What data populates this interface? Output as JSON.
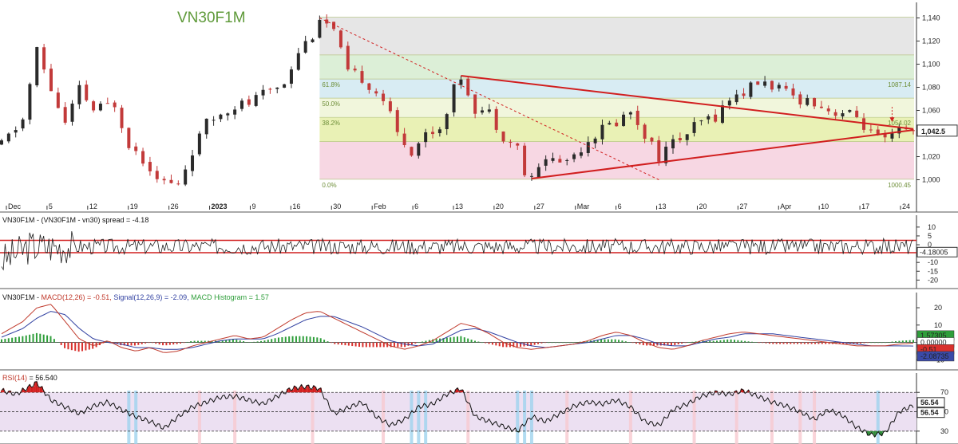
{
  "chart_data": {
    "type": "line",
    "title": "VN30F1M",
    "symbol": "VN30F1M",
    "colors": {
      "up_candle": "#2a2a2a",
      "down_candle": "#c23a3a",
      "trendline": "#d11f1f",
      "macd_line": "#c0392b",
      "signal_line": "#2f3fa0",
      "histogram_up": "#2e9e3a",
      "histogram_down": "#d9302c",
      "rsi_overbought_fill": "#d21d1d",
      "rsi_oversold_fill": "#2e8b37",
      "rsi_band": "#ece0f2",
      "fib_bands": [
        "#e6e6e6",
        "#dcefd7",
        "#d8ecf3",
        "#f1f6dc",
        "#e9f1b5",
        "#f7d7e3"
      ]
    },
    "x_tick_labels": [
      "Dec",
      "5",
      "12",
      "19",
      "26",
      "2023",
      "9",
      "16",
      "30",
      "Feb",
      "6",
      "13",
      "20",
      "27",
      "Mar",
      "6",
      "13",
      "20",
      "27",
      "Apr",
      "10",
      "17",
      "24"
    ],
    "price": {
      "ylim": [
        990,
        1150
      ],
      "y_ticks": [
        "1,140",
        "1,120",
        "1,100",
        "1,080",
        "1,060",
        "1,040",
        "1,020",
        "1,000"
      ],
      "last_price_label": "1,042.5",
      "last_price": 1042.5,
      "points": [
        [
          0,
          1030
        ],
        [
          3,
          1052
        ],
        [
          5,
          1112
        ],
        [
          7,
          1078
        ],
        [
          9,
          1048
        ],
        [
          11,
          1078
        ],
        [
          13,
          1060
        ],
        [
          16,
          1066
        ],
        [
          18,
          1032
        ],
        [
          20,
          1018
        ],
        [
          23,
          998
        ],
        [
          25,
          995
        ],
        [
          27,
          1025
        ],
        [
          29,
          1048
        ],
        [
          31,
          1058
        ],
        [
          33,
          1065
        ],
        [
          35,
          1066
        ],
        [
          37,
          1074
        ],
        [
          40,
          1085
        ],
        [
          42,
          1112
        ],
        [
          44,
          1126
        ],
        [
          45,
          1141
        ],
        [
          47,
          1128
        ],
        [
          49,
          1092
        ],
        [
          51,
          1088
        ],
        [
          54,
          1070
        ],
        [
          56,
          1040
        ],
        [
          58,
          1025
        ],
        [
          60,
          1040
        ],
        [
          62,
          1045
        ],
        [
          64,
          1078
        ],
        [
          65,
          1090
        ],
        [
          67,
          1062
        ],
        [
          69,
          1058
        ],
        [
          71,
          1038
        ],
        [
          73,
          1028
        ],
        [
          74,
          1005
        ],
        [
          75,
          1000
        ],
        [
          77,
          1020
        ],
        [
          79,
          1015
        ],
        [
          81,
          1022
        ],
        [
          83,
          1035
        ],
        [
          85,
          1044
        ],
        [
          87,
          1050
        ],
        [
          89,
          1060
        ],
        [
          91,
          1040
        ],
        [
          93,
          1020
        ],
        [
          95,
          1032
        ],
        [
          97,
          1040
        ],
        [
          99,
          1050
        ],
        [
          101,
          1055
        ],
        [
          103,
          1070
        ],
        [
          105,
          1076
        ],
        [
          107,
          1084
        ],
        [
          109,
          1082
        ],
        [
          111,
          1074
        ],
        [
          113,
          1070
        ],
        [
          115,
          1068
        ],
        [
          117,
          1060
        ],
        [
          119,
          1058
        ],
        [
          121,
          1054
        ],
        [
          123,
          1040
        ],
        [
          125,
          1032
        ],
        [
          127,
          1042
        ],
        [
          129,
          1042
        ]
      ],
      "fib_levels": [
        {
          "label": "",
          "value": 1140.7
        },
        {
          "label": "",
          "value": 1108
        },
        {
          "label": "61.8%",
          "value": 1087.14
        },
        {
          "label": "50.0%",
          "value": 1070.6
        },
        {
          "label": "38.2%",
          "value": 1054.02
        },
        {
          "label": "",
          "value": 1033
        },
        {
          "label": "0.0%",
          "value": 1000.45
        }
      ],
      "fib_values_right": [
        "1087.14",
        "1054.02",
        "1000.45"
      ],
      "trendlines": [
        {
          "from": [
            65,
            1090
          ],
          "to": [
            129,
            1044
          ]
        },
        {
          "from": [
            75,
            1001
          ],
          "to": [
            129,
            1043
          ]
        },
        {
          "from": [
            45,
            1140
          ],
          "to": [
            93,
            1000
          ],
          "dashed": true
        }
      ]
    },
    "spread": {
      "label": "VN30F1M - (VN30F1M - vn30) spread = -4.18",
      "ylim": [
        -23,
        14
      ],
      "y_ticks": [
        "10",
        "5",
        "0",
        "-5",
        "-10",
        "-15",
        "-20"
      ],
      "last_value_label": "-4.18005",
      "upper_band": 2.5,
      "lower_band": -4.5,
      "amplitude": 4.5
    },
    "macd": {
      "label_prefix": "VN30F1M - ",
      "macd_label": "MACD(12,26) = -0.51",
      "signal_label": "Signal(12,26,9) = -2.09",
      "hist_label": "MACD Histogram = 1.57",
      "ylim": [
        -14,
        26
      ],
      "y_ticks": [
        "20",
        "10",
        "0",
        "-10"
      ],
      "value_labels": [
        "1.57305",
        "0.00000",
        "-0.51",
        "-2.08735"
      ],
      "points": [
        [
          0,
          5
        ],
        [
          3,
          12
        ],
        [
          5,
          20
        ],
        [
          7,
          22
        ],
        [
          9,
          12
        ],
        [
          11,
          2
        ],
        [
          13,
          -2
        ],
        [
          15,
          1
        ],
        [
          17,
          -3
        ],
        [
          19,
          -5
        ],
        [
          21,
          -3
        ],
        [
          23,
          -6
        ],
        [
          25,
          -5
        ],
        [
          27,
          -2
        ],
        [
          29,
          0
        ],
        [
          31,
          2
        ],
        [
          33,
          4
        ],
        [
          35,
          2
        ],
        [
          37,
          3
        ],
        [
          39,
          8
        ],
        [
          41,
          13
        ],
        [
          43,
          17
        ],
        [
          45,
          18
        ],
        [
          47,
          14
        ],
        [
          49,
          10
        ],
        [
          51,
          6
        ],
        [
          53,
          2
        ],
        [
          55,
          -2
        ],
        [
          57,
          -4
        ],
        [
          59,
          -2
        ],
        [
          61,
          1
        ],
        [
          63,
          6
        ],
        [
          65,
          11
        ],
        [
          67,
          9
        ],
        [
          69,
          5
        ],
        [
          71,
          0
        ],
        [
          73,
          -3
        ],
        [
          75,
          -4
        ],
        [
          77,
          -3
        ],
        [
          79,
          -2
        ],
        [
          81,
          -1
        ],
        [
          83,
          1
        ],
        [
          85,
          4
        ],
        [
          87,
          6
        ],
        [
          89,
          4
        ],
        [
          91,
          0
        ],
        [
          93,
          -3
        ],
        [
          95,
          -4
        ],
        [
          97,
          -2
        ],
        [
          99,
          1
        ],
        [
          101,
          3
        ],
        [
          103,
          5
        ],
        [
          105,
          6
        ],
        [
          107,
          5
        ],
        [
          109,
          4
        ],
        [
          111,
          3
        ],
        [
          113,
          2
        ],
        [
          115,
          1
        ],
        [
          117,
          0
        ],
        [
          119,
          -1
        ],
        [
          121,
          -2
        ],
        [
          123,
          -2
        ],
        [
          125,
          -2
        ],
        [
          127,
          -1
        ],
        [
          129,
          -0.5
        ]
      ],
      "signal_points": [
        [
          0,
          3
        ],
        [
          3,
          8
        ],
        [
          5,
          14
        ],
        [
          7,
          18
        ],
        [
          9,
          16
        ],
        [
          11,
          8
        ],
        [
          13,
          2
        ],
        [
          15,
          0
        ],
        [
          17,
          -1
        ],
        [
          19,
          -3
        ],
        [
          21,
          -3
        ],
        [
          23,
          -4
        ],
        [
          25,
          -4
        ],
        [
          27,
          -3
        ],
        [
          29,
          -1
        ],
        [
          31,
          1
        ],
        [
          33,
          2
        ],
        [
          35,
          2
        ],
        [
          37,
          2
        ],
        [
          39,
          5
        ],
        [
          41,
          9
        ],
        [
          43,
          13
        ],
        [
          45,
          15
        ],
        [
          47,
          15
        ],
        [
          49,
          12
        ],
        [
          51,
          9
        ],
        [
          53,
          5
        ],
        [
          55,
          1
        ],
        [
          57,
          -1
        ],
        [
          59,
          -2
        ],
        [
          61,
          -1
        ],
        [
          63,
          3
        ],
        [
          65,
          7
        ],
        [
          67,
          8
        ],
        [
          69,
          6
        ],
        [
          71,
          3
        ],
        [
          73,
          0
        ],
        [
          75,
          -2
        ],
        [
          77,
          -3
        ],
        [
          79,
          -2
        ],
        [
          81,
          -1
        ],
        [
          83,
          0
        ],
        [
          85,
          2
        ],
        [
          87,
          4
        ],
        [
          89,
          4
        ],
        [
          91,
          2
        ],
        [
          93,
          -1
        ],
        [
          95,
          -2
        ],
        [
          97,
          -2
        ],
        [
          99,
          0
        ],
        [
          101,
          2
        ],
        [
          103,
          3
        ],
        [
          105,
          5
        ],
        [
          107,
          5
        ],
        [
          109,
          5
        ],
        [
          111,
          4
        ],
        [
          113,
          3
        ],
        [
          115,
          2
        ],
        [
          117,
          1
        ],
        [
          119,
          0
        ],
        [
          121,
          -1
        ],
        [
          123,
          -2
        ],
        [
          125,
          -2
        ],
        [
          127,
          -2
        ],
        [
          129,
          -2.09
        ]
      ]
    },
    "rsi": {
      "label": "RSI(14) = 56.540",
      "ylim": [
        20,
        85
      ],
      "y_ticks": [
        "70",
        "50",
        "30"
      ],
      "overbought": 70,
      "midline": 50,
      "oversold": 30,
      "value_labels": [
        "56.54",
        "56.54"
      ],
      "points": [
        [
          0,
          72
        ],
        [
          2,
          68
        ],
        [
          4,
          76
        ],
        [
          5,
          80
        ],
        [
          7,
          62
        ],
        [
          9,
          55
        ],
        [
          11,
          48
        ],
        [
          13,
          56
        ],
        [
          15,
          60
        ],
        [
          17,
          52
        ],
        [
          19,
          45
        ],
        [
          21,
          40
        ],
        [
          23,
          33
        ],
        [
          25,
          45
        ],
        [
          27,
          55
        ],
        [
          29,
          60
        ],
        [
          31,
          65
        ],
        [
          33,
          66
        ],
        [
          35,
          62
        ],
        [
          37,
          58
        ],
        [
          39,
          66
        ],
        [
          41,
          74
        ],
        [
          43,
          76
        ],
        [
          45,
          74
        ],
        [
          47,
          48
        ],
        [
          49,
          54
        ],
        [
          51,
          60
        ],
        [
          53,
          45
        ],
        [
          55,
          36
        ],
        [
          57,
          42
        ],
        [
          59,
          55
        ],
        [
          61,
          58
        ],
        [
          63,
          68
        ],
        [
          65,
          74
        ],
        [
          67,
          45
        ],
        [
          69,
          40
        ],
        [
          71,
          35
        ],
        [
          73,
          30
        ],
        [
          75,
          45
        ],
        [
          77,
          40
        ],
        [
          79,
          48
        ],
        [
          81,
          56
        ],
        [
          83,
          60
        ],
        [
          85,
          58
        ],
        [
          87,
          62
        ],
        [
          89,
          55
        ],
        [
          91,
          40
        ],
        [
          93,
          36
        ],
        [
          95,
          52
        ],
        [
          97,
          58
        ],
        [
          99,
          66
        ],
        [
          101,
          70
        ],
        [
          103,
          68
        ],
        [
          105,
          72
        ],
        [
          107,
          66
        ],
        [
          109,
          60
        ],
        [
          111,
          56
        ],
        [
          113,
          50
        ],
        [
          115,
          42
        ],
        [
          117,
          52
        ],
        [
          119,
          46
        ],
        [
          121,
          34
        ],
        [
          123,
          26
        ],
        [
          125,
          28
        ],
        [
          127,
          50
        ],
        [
          129,
          56.5
        ]
      ],
      "highlights_blue": [
        18,
        19,
        58,
        59,
        60,
        73,
        74,
        75,
        124
      ],
      "highlights_pink": [
        28,
        33,
        44,
        54,
        66,
        80,
        89,
        98,
        104,
        109,
        113,
        115
      ]
    }
  }
}
